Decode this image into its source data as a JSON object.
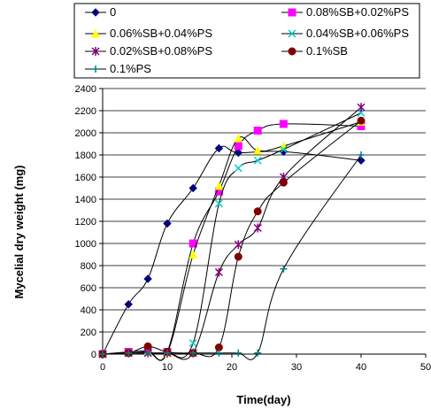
{
  "chart_data": {
    "type": "line",
    "title": "",
    "xlabel": "Time(day)",
    "ylabel": "Mycelial dry weight (mg)",
    "xlim": [
      0,
      50
    ],
    "ylim": [
      0,
      2400
    ],
    "x_ticks": [
      "0",
      "10",
      "20",
      "30",
      "40",
      "50"
    ],
    "y_ticks": [
      "0",
      "200",
      "400",
      "600",
      "800",
      "1000",
      "1200",
      "1400",
      "1600",
      "1800",
      "2000",
      "2200",
      "2400"
    ],
    "grid": "horizontal",
    "legend_position": "top",
    "series": [
      {
        "name": "0",
        "color": "#000080",
        "marker": "diamond",
        "x": [
          0,
          4,
          7,
          10,
          14,
          18,
          21,
          28,
          40
        ],
        "y": [
          0,
          450,
          680,
          1180,
          1500,
          1860,
          1820,
          1830,
          1750
        ]
      },
      {
        "name": "0.08%SB+0.02%PS",
        "color": "#FF00FF",
        "marker": "square",
        "x": [
          0,
          4,
          7,
          10,
          14,
          18,
          21,
          24,
          28,
          40
        ],
        "y": [
          0,
          20,
          30,
          20,
          1000,
          1470,
          1880,
          2020,
          2080,
          2060
        ]
      },
      {
        "name": "0.06%SB+0.04%PS",
        "color": "#FFFF00",
        "marker": "triangle",
        "x": [
          0,
          4,
          7,
          10,
          14,
          18,
          21,
          24,
          28,
          40
        ],
        "y": [
          0,
          10,
          20,
          10,
          900,
          1520,
          1950,
          1840,
          1880,
          2100
        ]
      },
      {
        "name": "0.04%SB+0.06%PS",
        "color": "#00CCCC",
        "marker": "x",
        "x": [
          0,
          4,
          7,
          10,
          14,
          18,
          21,
          24,
          28,
          40
        ],
        "y": [
          0,
          10,
          10,
          10,
          100,
          1360,
          1680,
          1750,
          1850,
          2180
        ]
      },
      {
        "name": "0.02%SB+0.08%PS",
        "color": "#800080",
        "marker": "star",
        "x": [
          0,
          4,
          7,
          10,
          14,
          18,
          21,
          24,
          28,
          40
        ],
        "y": [
          0,
          10,
          10,
          10,
          10,
          740,
          990,
          1140,
          1600,
          2230
        ]
      },
      {
        "name": "0.1%SB",
        "color": "#800000",
        "marker": "circle",
        "x": [
          0,
          4,
          7,
          10,
          14,
          18,
          21,
          24,
          28,
          40
        ],
        "y": [
          0,
          10,
          70,
          20,
          10,
          60,
          880,
          1290,
          1550,
          2110
        ]
      },
      {
        "name": "0.1%PS",
        "color": "#008080",
        "marker": "plus",
        "x": [
          0,
          4,
          7,
          10,
          14,
          18,
          21,
          24,
          28,
          40
        ],
        "y": [
          0,
          10,
          10,
          10,
          10,
          10,
          10,
          10,
          770,
          1800
        ]
      }
    ]
  }
}
